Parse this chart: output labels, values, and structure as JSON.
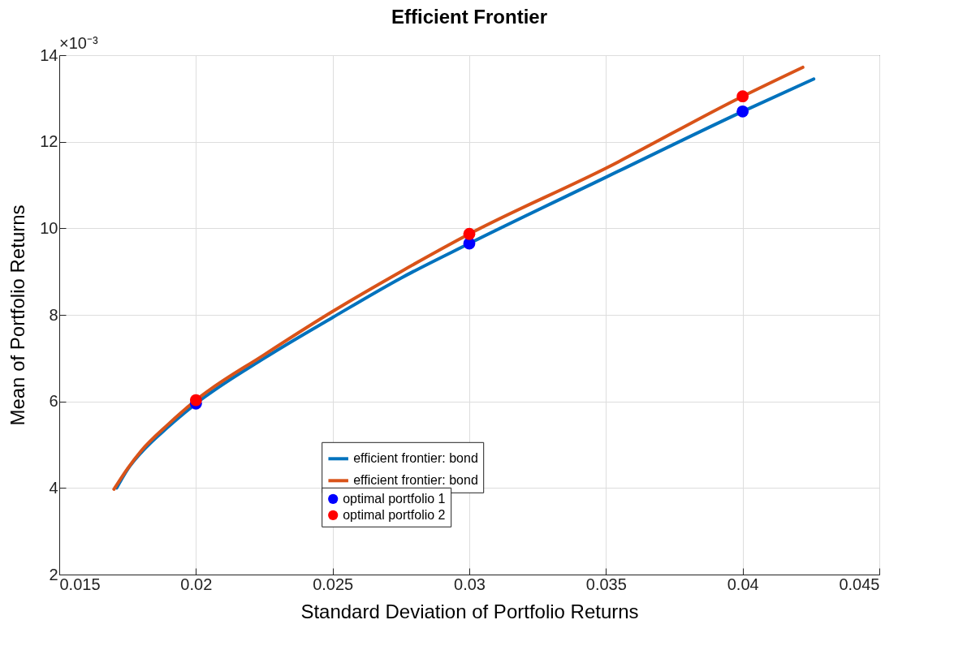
{
  "chart_data": {
    "type": "line",
    "title": "Efficient Frontier",
    "xlabel": "Standard Deviation of Portfolio Returns",
    "ylabel": "Mean of Portfolio Returns",
    "annotations": [
      "×10⁻³"
    ],
    "xlim": [
      0.015,
      0.045
    ],
    "xticks": [
      0.015,
      0.02,
      0.025,
      0.03,
      0.035,
      0.04,
      0.045
    ],
    "ylim": [
      2,
      14
    ],
    "yticks": [
      2,
      4,
      6,
      8,
      10,
      12,
      14
    ],
    "grid": true,
    "legend": "bottom",
    "series": [
      {
        "name": "efficient frontier: bond",
        "color": "#0072bd",
        "x": [
          0.0171,
          0.0175,
          0.018,
          0.019,
          0.02,
          0.0225,
          0.025,
          0.0275,
          0.03,
          0.035,
          0.04,
          0.0426
        ],
        "values": [
          4.0,
          4.43,
          4.82,
          5.42,
          5.95,
          7.0,
          7.94,
          8.85,
          9.65,
          11.18,
          12.7,
          13.45
        ]
      },
      {
        "name": "efficient frontier: bond",
        "color": "#d95319",
        "x": [
          0.017,
          0.0175,
          0.018,
          0.019,
          0.02,
          0.0225,
          0.025,
          0.0275,
          0.03,
          0.035,
          0.04,
          0.0422
        ],
        "values": [
          3.97,
          4.45,
          4.86,
          5.48,
          6.03,
          7.08,
          8.08,
          9.0,
          9.87,
          11.39,
          13.05,
          13.72
        ]
      },
      {
        "name": "optimal portfolio 1",
        "type": "scatter",
        "marker": "circle",
        "color": "#0000ff",
        "x": [
          0.02,
          0.03,
          0.04
        ],
        "values": [
          5.95,
          9.65,
          12.7
        ]
      },
      {
        "name": "optimal portfolio 2",
        "type": "scatter",
        "marker": "circle",
        "color": "#ff0000",
        "x": [
          0.02,
          0.03,
          0.04
        ],
        "values": [
          6.03,
          9.87,
          13.05
        ]
      }
    ]
  }
}
